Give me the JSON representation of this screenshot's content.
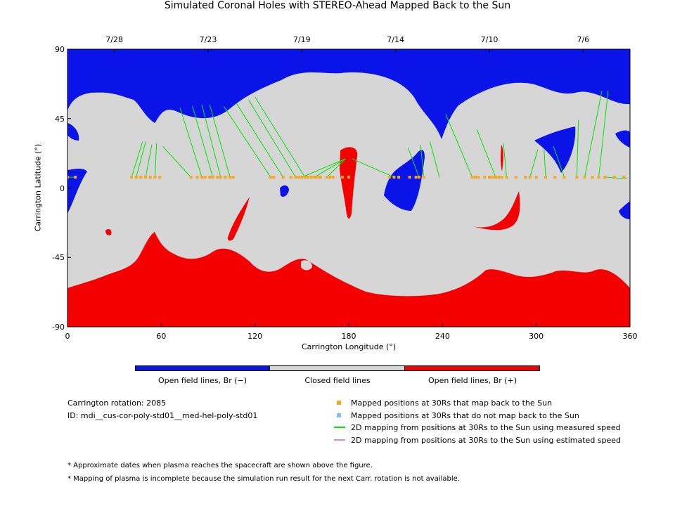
{
  "title": "Simulated Coronal Holes with STEREO-Ahead Mapped Back to the Sun",
  "chart_data": {
    "type": "map",
    "title": "Simulated Coronal Holes with STEREO-Ahead Mapped Back to the Sun",
    "xlabel": "Carrington Longitude (°)",
    "ylabel": "Carrington Latitude (°)",
    "xlim": [
      0,
      360
    ],
    "ylim": [
      -90,
      90
    ],
    "xticks": [
      0,
      60,
      120,
      180,
      240,
      300,
      360
    ],
    "yticks": [
      -90,
      -45,
      0,
      45,
      90
    ],
    "top_dates": [
      {
        "label": "7/28",
        "lon": 30
      },
      {
        "label": "7/23",
        "lon": 90
      },
      {
        "label": "7/19",
        "lon": 150
      },
      {
        "label": "7/14",
        "lon": 210
      },
      {
        "label": "7/10",
        "lon": 270
      },
      {
        "label": "7/6",
        "lon": 330
      }
    ],
    "mapped_latitude": 7,
    "mapped_positions_lon": [
      0,
      5,
      41,
      44,
      47,
      50,
      53,
      56,
      59,
      79,
      83,
      86,
      88,
      91,
      93,
      96,
      98,
      101,
      104,
      106,
      130,
      132,
      138,
      143,
      146,
      148,
      150,
      152,
      154,
      156,
      158,
      160,
      162,
      166,
      168,
      170,
      176,
      180,
      206,
      209,
      212,
      219,
      223,
      225,
      228,
      259,
      261,
      263,
      267,
      270,
      272,
      274,
      276,
      278,
      281,
      287,
      293,
      296,
      300,
      306,
      312,
      318,
      326,
      331,
      336,
      340,
      344,
      350,
      356
    ],
    "field_lines": [
      {
        "lon_top": 48,
        "lat_top": 30,
        "lon_base": 41
      },
      {
        "lon_top": 50,
        "lat_top": 30,
        "lon_base": 44
      },
      {
        "lon_top": 54,
        "lat_top": 28,
        "lon_base": 50
      },
      {
        "lon_top": 57,
        "lat_top": 29,
        "lon_base": 56
      },
      {
        "lon_top": 61,
        "lat_top": 27,
        "lon_base": 79
      },
      {
        "lon_top": 72,
        "lat_top": 52,
        "lon_base": 86
      },
      {
        "lon_top": 80,
        "lat_top": 53,
        "lon_base": 93
      },
      {
        "lon_top": 86,
        "lat_top": 54,
        "lon_base": 98
      },
      {
        "lon_top": 91,
        "lat_top": 54,
        "lon_base": 104
      },
      {
        "lon_top": 100,
        "lat_top": 53,
        "lon_base": 130
      },
      {
        "lon_top": 108,
        "lat_top": 55,
        "lon_base": 138
      },
      {
        "lon_top": 116,
        "lat_top": 57,
        "lon_base": 146
      },
      {
        "lon_top": 120,
        "lat_top": 59,
        "lon_base": 152
      },
      {
        "lon_top": 178,
        "lat_top": 19,
        "lon_base": 150
      },
      {
        "lon_top": 178,
        "lat_top": 19,
        "lon_base": 158
      },
      {
        "lon_top": 178,
        "lat_top": 19,
        "lon_base": 166
      },
      {
        "lon_top": 182,
        "lat_top": 19,
        "lon_base": 209
      },
      {
        "lon_top": 218,
        "lat_top": 26,
        "lon_base": 225
      },
      {
        "lon_top": 226,
        "lat_top": 28,
        "lon_base": 228
      },
      {
        "lon_top": 232,
        "lat_top": 30,
        "lon_base": 238
      },
      {
        "lon_top": 242,
        "lat_top": 48,
        "lon_base": 259
      },
      {
        "lon_top": 262,
        "lat_top": 38,
        "lon_base": 274
      },
      {
        "lon_top": 279,
        "lat_top": 29,
        "lon_base": 281
      },
      {
        "lon_top": 301,
        "lat_top": 25,
        "lon_base": 296
      },
      {
        "lon_top": 305,
        "lat_top": 25,
        "lon_base": 306
      },
      {
        "lon_top": 311,
        "lat_top": 27,
        "lon_base": 318
      },
      {
        "lon_top": 327,
        "lat_top": 44,
        "lon_base": 326
      },
      {
        "lon_top": 342,
        "lat_top": 63,
        "lon_base": 331
      },
      {
        "lon_top": 346,
        "lat_top": 63,
        "lon_base": 340
      },
      {
        "lon_top": 358,
        "lat_top": 6,
        "lon_base": 345
      },
      {
        "lon_top": 0,
        "lat_top": 7,
        "lon_base": 5
      }
    ],
    "colorbar": [
      {
        "label": "Open field lines, Br (−)",
        "color": "#0a14e8"
      },
      {
        "label": "Closed field lines",
        "color": "#d6d6d6"
      },
      {
        "label": "Open field lines, Br (+)",
        "color": "#f40000"
      }
    ]
  },
  "info": {
    "rotation": "Carrington rotation: 2085",
    "id": "ID: mdi__cus-cor-poly-std01__med-hel-poly-std01"
  },
  "legend": {
    "maps_back": "Mapped positions at 30Rs that map back to the Sun",
    "not_map": "Mapped positions at 30Rs that do not map back to the Sun",
    "measured": "2D mapping from positions at 30Rs to the Sun using measured speed",
    "estimated": "2D mapping from positions at 30Rs to the Sun using estimated speed"
  },
  "notes": {
    "note1": "* Approximate dates when plasma reaches the spacecraft are shown above the figure.",
    "note2": "* Mapping of plasma is incomplete because the simulation run result for the next Carr. rotation is not available."
  },
  "colors": {
    "negative": "#0a14e8",
    "closed": "#d6d6d6",
    "positive": "#f40000",
    "mapped": "#f5a623",
    "not_mapped": "#7fc1ef",
    "measured": "#00e600",
    "estimated": "#c890ec"
  }
}
